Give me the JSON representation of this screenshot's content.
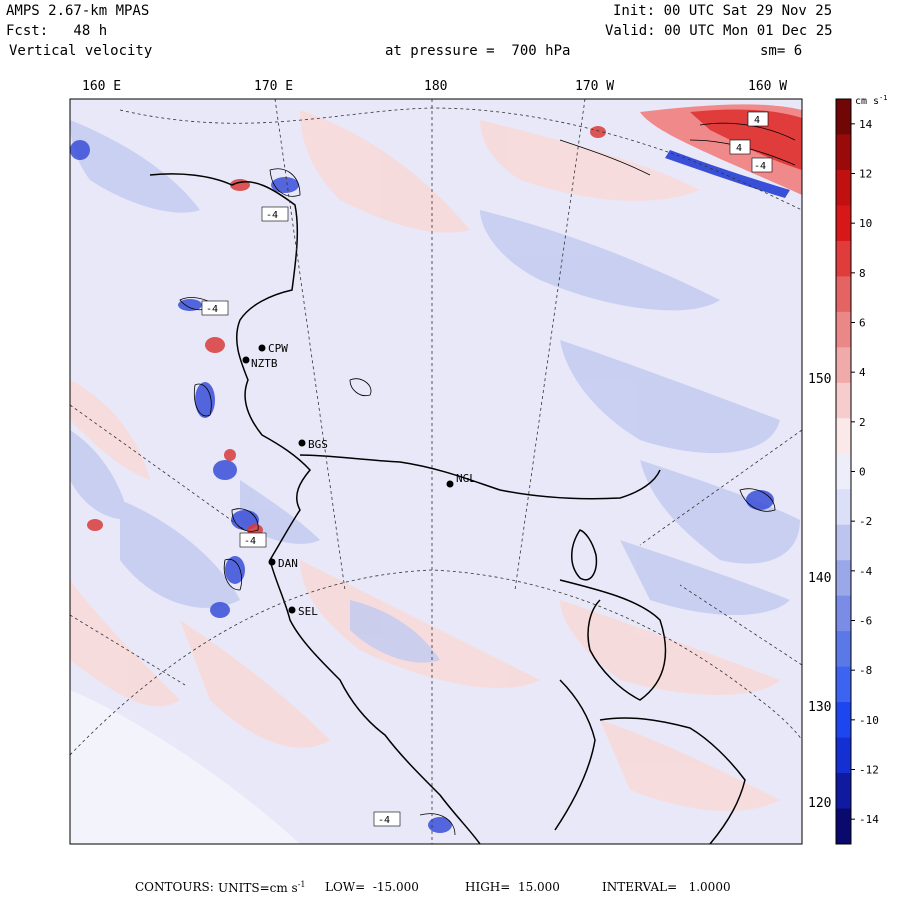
{
  "header": {
    "model": "AMPS 2.67-km MPAS",
    "forecast": "Fcst:   48 h",
    "variable": "Vertical velocity",
    "init": "Init: 00 UTC Sat 29 Nov 25",
    "valid": "Valid: 00 UTC Mon 01 Dec 25",
    "pressure": "at pressure =  700 hPa",
    "smoothing": "sm= 6"
  },
  "longitude_labels": [
    "160 E",
    "170 E",
    "180",
    "170 W",
    "160 W"
  ],
  "latitude_labels": [
    "150 W",
    "140 W",
    "130 W",
    "120 W"
  ],
  "stations": [
    {
      "id": "CPW"
    },
    {
      "id": "NZTB"
    },
    {
      "id": "BGS"
    },
    {
      "id": "NGL"
    },
    {
      "id": "DAN"
    },
    {
      "id": "SEL"
    }
  ],
  "contour_labels": [
    "-4",
    "-4",
    "-4",
    "4",
    "4",
    "-4",
    "-4"
  ],
  "colorbar": {
    "unit_label": "cm s",
    "unit_exp": "-1",
    "ticks": [
      "14",
      "12",
      "10",
      "8",
      "6",
      "4",
      "2",
      "0",
      "-2",
      "-4",
      "-6",
      "-8",
      "-10",
      "-12",
      "-14"
    ],
    "colors": [
      "#0a0a6e",
      "#0f1aa0",
      "#1530d2",
      "#1e46f0",
      "#3c64f0",
      "#5a78e6",
      "#7a8ce6",
      "#9aa8ea",
      "#bcc4f0",
      "#dcdff8",
      "#eeeefb",
      "#fbe8e8",
      "#f6cccc",
      "#f0aaaa",
      "#ea8888",
      "#e46464",
      "#e03c3c",
      "#d81818",
      "#c01010",
      "#9a0a0a",
      "#700606"
    ]
  },
  "footer": {
    "contours_label": "CONTOURS:",
    "units_text": "UNITS=cm s",
    "units_exp": "-1",
    "low_text": "LOW=  -15.000",
    "high_text": "HIGH=  15.000",
    "interval_text": "INTERVAL=   1.0000"
  }
}
